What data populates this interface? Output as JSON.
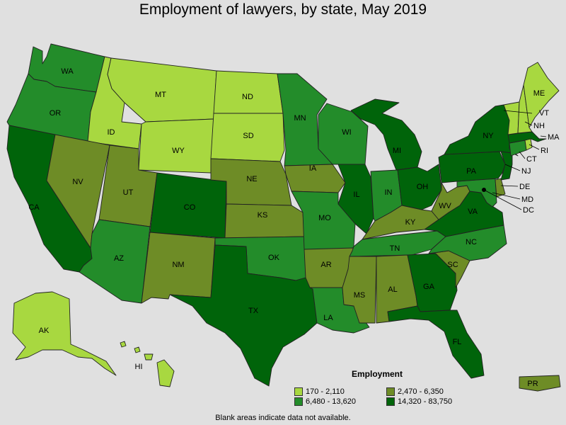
{
  "title": "Employment of lawyers, by state, May 2019",
  "colors": {
    "bin0": "#a8d840",
    "bin1": "#6e8c26",
    "bin2": "#238c2a",
    "bin3": "#00640a",
    "background": "#e0e0e0"
  },
  "legend": {
    "title": "Employment",
    "items": [
      {
        "label": "170 - 2,110",
        "bin": "bin0"
      },
      {
        "label": "2,470 - 6,350",
        "bin": "bin1"
      },
      {
        "label": "6,480 - 13,620",
        "bin": "bin2"
      },
      {
        "label": "14,320 - 83,750",
        "bin": "bin3"
      }
    ]
  },
  "note": "Blank areas indicate data not available.",
  "states": {
    "WA": {
      "label": "WA",
      "bin": "bin2"
    },
    "OR": {
      "label": "OR",
      "bin": "bin2"
    },
    "CA": {
      "label": "CA",
      "bin": "bin3"
    },
    "ID": {
      "label": "ID",
      "bin": "bin0"
    },
    "NV": {
      "label": "NV",
      "bin": "bin1"
    },
    "MT": {
      "label": "MT",
      "bin": "bin0"
    },
    "WY": {
      "label": "WY",
      "bin": "bin0"
    },
    "UT": {
      "label": "UT",
      "bin": "bin1"
    },
    "AZ": {
      "label": "AZ",
      "bin": "bin2"
    },
    "CO": {
      "label": "CO",
      "bin": "bin3"
    },
    "NM": {
      "label": "NM",
      "bin": "bin1"
    },
    "ND": {
      "label": "ND",
      "bin": "bin0"
    },
    "SD": {
      "label": "SD",
      "bin": "bin0"
    },
    "NE": {
      "label": "NE",
      "bin": "bin1"
    },
    "KS": {
      "label": "KS",
      "bin": "bin1"
    },
    "OK": {
      "label": "OK",
      "bin": "bin2"
    },
    "TX": {
      "label": "TX",
      "bin": "bin3"
    },
    "MN": {
      "label": "MN",
      "bin": "bin2"
    },
    "IA": {
      "label": "IA",
      "bin": "bin1"
    },
    "MO": {
      "label": "MO",
      "bin": "bin2"
    },
    "AR": {
      "label": "AR",
      "bin": "bin1"
    },
    "LA": {
      "label": "LA",
      "bin": "bin2"
    },
    "WI": {
      "label": "WI",
      "bin": "bin2"
    },
    "IL": {
      "label": "IL",
      "bin": "bin3"
    },
    "MI": {
      "label": "MI",
      "bin": "bin3"
    },
    "IN": {
      "label": "IN",
      "bin": "bin2"
    },
    "OH": {
      "label": "OH",
      "bin": "bin3"
    },
    "KY": {
      "label": "KY",
      "bin": "bin1"
    },
    "TN": {
      "label": "TN",
      "bin": "bin2"
    },
    "MS": {
      "label": "MS",
      "bin": "bin1"
    },
    "AL": {
      "label": "AL",
      "bin": "bin1"
    },
    "GA": {
      "label": "GA",
      "bin": "bin3"
    },
    "FL": {
      "label": "FL",
      "bin": "bin3"
    },
    "SC": {
      "label": "SC",
      "bin": "bin1"
    },
    "NC": {
      "label": "NC",
      "bin": "bin2"
    },
    "VA": {
      "label": "VA",
      "bin": "bin3"
    },
    "WV": {
      "label": "WV",
      "bin": "bin1"
    },
    "MD": {
      "label": "MD",
      "bin": "bin2"
    },
    "DE": {
      "label": "DE",
      "bin": "bin1"
    },
    "DC": {
      "label": "DC",
      "bin": "bin3"
    },
    "PA": {
      "label": "PA",
      "bin": "bin3"
    },
    "NJ": {
      "label": "NJ",
      "bin": "bin3"
    },
    "NY": {
      "label": "NY",
      "bin": "bin3"
    },
    "CT": {
      "label": "CT",
      "bin": "bin2"
    },
    "RI": {
      "label": "RI",
      "bin": "bin0"
    },
    "MA": {
      "label": "MA",
      "bin": "bin3"
    },
    "VT": {
      "label": "VT",
      "bin": "bin0"
    },
    "NH": {
      "label": "NH",
      "bin": "bin0"
    },
    "ME": {
      "label": "ME",
      "bin": "bin0"
    },
    "AK": {
      "label": "AK",
      "bin": "bin0"
    },
    "HI": {
      "label": "HI",
      "bin": "bin0"
    },
    "PR": {
      "label": "PR",
      "bin": "bin1"
    }
  }
}
